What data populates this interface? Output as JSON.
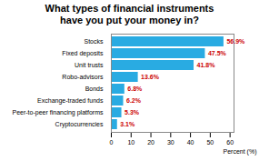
{
  "chart_data": {
    "type": "bar",
    "orientation": "horizontal",
    "title": "What types of financial instruments\nhave you put your money in?",
    "categories": [
      "Cryptocurrencies",
      "Peer-to-peer financing platforms",
      "Exchange-traded funds",
      "Bonds",
      "Robo-advisors",
      "Unit trusts",
      "Fixed deposits",
      "Stocks"
    ],
    "values": [
      3.1,
      5.3,
      6.2,
      6.8,
      13.6,
      41.8,
      47.5,
      56.9
    ],
    "value_labels": [
      "3.1%",
      "5.3%",
      "6.2%",
      "6.8%",
      "13.6%",
      "41.8%",
      "47.5%",
      "56.9%"
    ],
    "data_labels": true,
    "color": "#29ABE2",
    "xlim": [
      0,
      62
    ],
    "xticks": [
      0,
      10,
      20,
      30,
      40,
      50,
      60
    ],
    "xlabel": "Percent (%)",
    "grid": false
  }
}
